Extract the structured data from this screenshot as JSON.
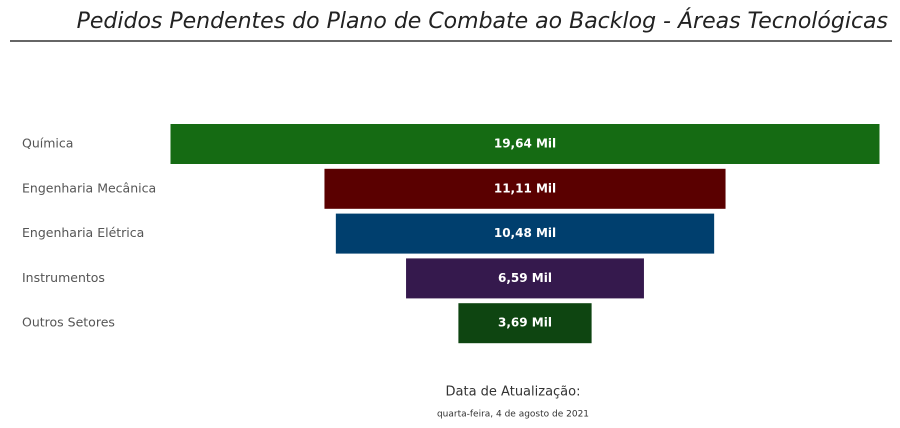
{
  "chart_data": {
    "type": "funnel",
    "title": "Pedidos Pendentes do Plano de Combate ao Backlog - Áreas Tecnológicas",
    "categories": [
      "Química",
      "Engenharia Mecânica",
      "Engenharia Elétrica",
      "Instrumentos",
      "Outros Setores"
    ],
    "values": [
      19.64,
      11.11,
      10.48,
      6.59,
      3.69
    ],
    "value_labels": [
      "19,64 Mil",
      "11,11 Mil",
      "10,48 Mil",
      "6,59 Mil",
      "3,69 Mil"
    ],
    "colors": [
      "#156b13",
      "#5a0000",
      "#003f6e",
      "#35194d",
      "#0e4511"
    ],
    "update_label": "Data de Atualização:",
    "update_date": "quarta-feira, 4 de agosto de 2021"
  }
}
